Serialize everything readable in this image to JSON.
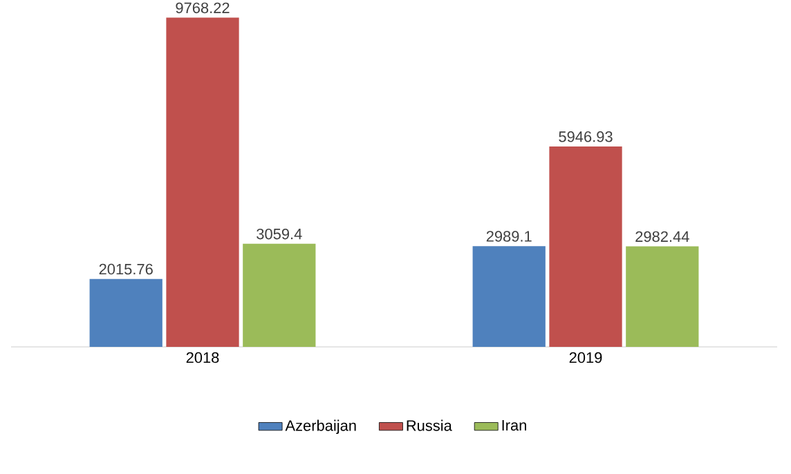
{
  "chart_data": {
    "type": "bar",
    "categories": [
      "2018",
      "2019"
    ],
    "series": [
      {
        "name": "Azerbaijan",
        "color": "#4f81bd",
        "values": [
          2015.76,
          2989.1
        ]
      },
      {
        "name": "Russia",
        "color": "#c0504d",
        "values": [
          9768.22,
          5946.93
        ]
      },
      {
        "name": "Iran",
        "color": "#9bbb59",
        "values": [
          3059.4,
          2982.44
        ]
      }
    ],
    "data_labels": true,
    "legend": "bottom"
  }
}
